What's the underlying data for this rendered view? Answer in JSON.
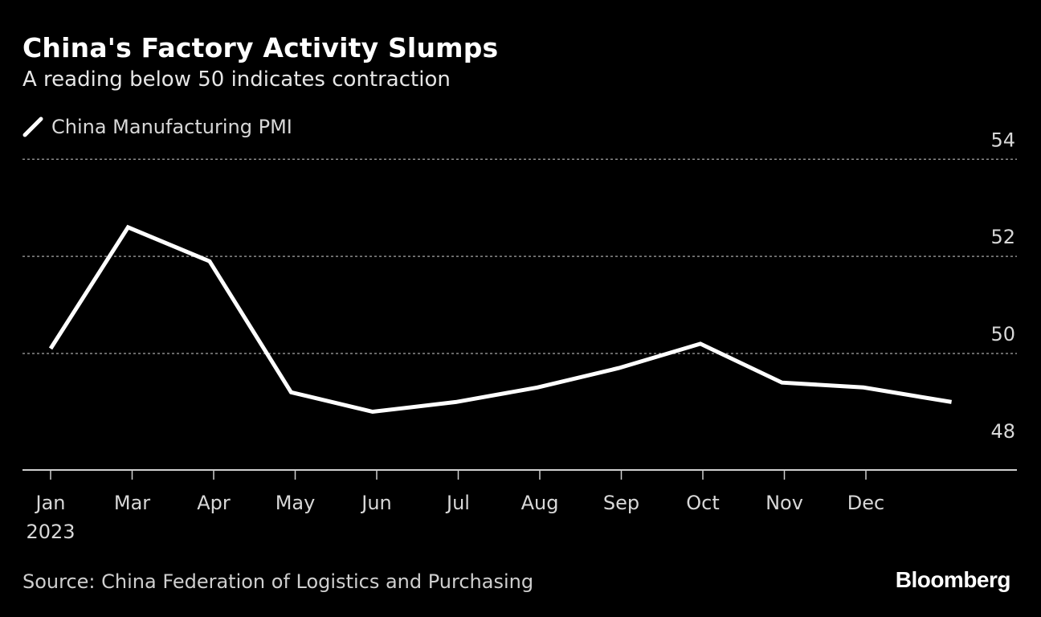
{
  "title": "China's Factory Activity Slumps",
  "subtitle": "A reading below 50 indicates contraction",
  "legend": {
    "label": "China Manufacturing PMI",
    "icon": "line-swatch-icon"
  },
  "source": "Source: China Federation of Logistics and Purchasing",
  "brand": "Bloomberg",
  "colors": {
    "background": "#000000",
    "line": "#ffffff",
    "grid": "#8a8a8a",
    "text": "#d8d8d8"
  },
  "chart_data": {
    "type": "line",
    "title": "China's Factory Activity Slumps",
    "subtitle": "A reading below 50 indicates contraction",
    "xlabel": "",
    "ylabel": "",
    "x_year_label": "2023",
    "categories": [
      "Jan",
      "Mar",
      "Apr",
      "May",
      "Jun",
      "Jul",
      "Aug",
      "Sep",
      "Oct",
      "Nov",
      "Dec"
    ],
    "series": [
      {
        "name": "China Manufacturing PMI",
        "x": [
          0,
          0.95,
          1.95,
          2.95,
          3.95,
          4.97,
          5.97,
          6.97,
          7.97,
          8.97,
          9.97,
          11.05
        ],
        "values": [
          50.1,
          52.6,
          51.9,
          49.2,
          48.8,
          49.0,
          49.3,
          49.7,
          50.2,
          49.4,
          49.3,
          49.0
        ]
      }
    ],
    "xlim": [
      -0.3,
      11.9
    ],
    "ylim": [
      47.6,
      54.6
    ],
    "yticks": [
      48,
      50,
      52,
      54
    ],
    "gridlines": [
      50,
      52,
      54
    ],
    "legend_position": "top-left"
  }
}
